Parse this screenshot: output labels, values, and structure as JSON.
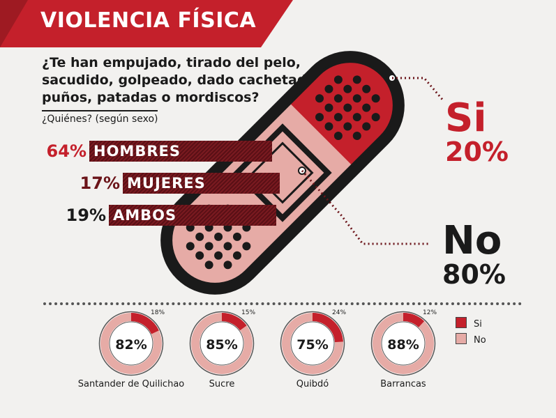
{
  "title": "VIOLENCIA FÍSICA",
  "question_lines": [
    "¿Te han empujado, tirado del pelo,",
    "sacudido, golpeado, dado cachetadas,",
    "puños, patadas o mordiscos?"
  ],
  "sub_question": "¿Quiénes? (según sexo)",
  "big": {
    "si_label": "Si",
    "si_pct": "20%",
    "no_label": "No",
    "no_pct": "80%"
  },
  "legend": {
    "si": "Si",
    "no": "No"
  },
  "colors": {
    "red": "#c4202b",
    "dark_red": "#6b1419",
    "pink": "#e6aba6",
    "dark": "#1a1a1a"
  },
  "chart_data": [
    {
      "type": "bar",
      "categories": [
        "HOMBRES",
        "MUJERES",
        "AMBOS"
      ],
      "value_labels": [
        "64%",
        "17%",
        "19%"
      ],
      "values": [
        64,
        17,
        19
      ]
    },
    {
      "type": "pie",
      "labels": [
        "Si",
        "No"
      ],
      "value_labels": [
        "20%",
        "80%"
      ],
      "values": [
        20,
        80
      ]
    },
    {
      "type": "pie",
      "charts": [
        {
          "name": "Santander de Quilichao",
          "si": 18,
          "no": 82,
          "si_label": "18%",
          "no_label": "82%"
        },
        {
          "name": "Sucre",
          "si": 15,
          "no": 85,
          "si_label": "15%",
          "no_label": "85%"
        },
        {
          "name": "Quibdó",
          "si": 24,
          "no": 75,
          "si_label": "24%",
          "no_label": "75%"
        },
        {
          "name": "Barrancas",
          "si": 12,
          "no": 88,
          "si_label": "12%",
          "no_label": "88%"
        }
      ]
    }
  ]
}
